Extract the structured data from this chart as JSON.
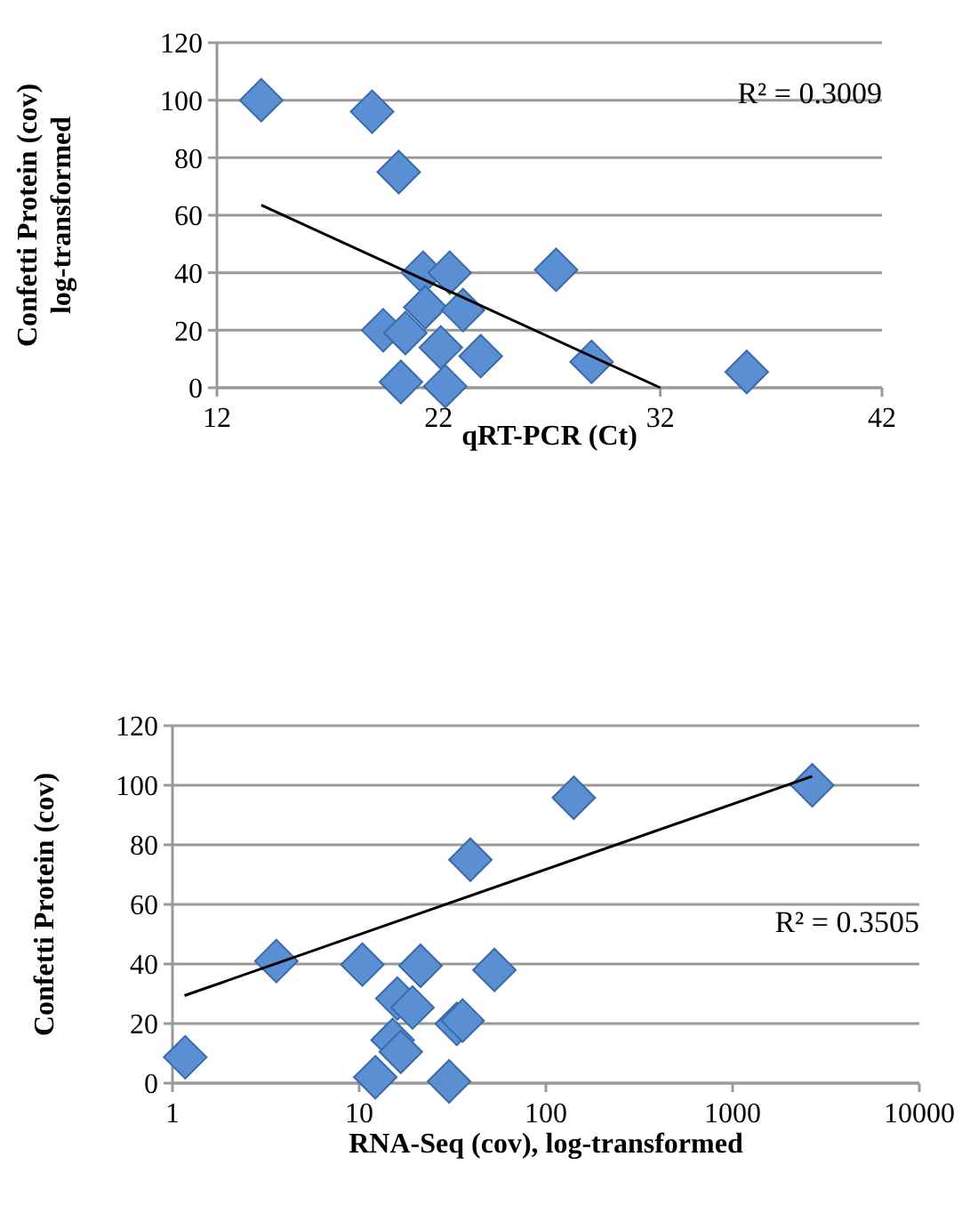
{
  "chart_data": [
    {
      "type": "scatter",
      "xlabel": "qRT-PCR (Ct)",
      "ylabel": "Confetti Protein (cov)\nlog-transformed",
      "xlim": [
        12,
        42
      ],
      "xticks": [
        12,
        22,
        32,
        42
      ],
      "ylim": [
        0,
        120
      ],
      "yticks": [
        0,
        20,
        40,
        60,
        80,
        100,
        120
      ],
      "grid": "y",
      "marker": "diamond",
      "annotations": [
        "R² = 0.3009"
      ],
      "series": [
        {
          "color": "#5b8fd4",
          "x": [
            14,
            19,
            20.2,
            21.3,
            22.5,
            27.3,
            21.4,
            23.1,
            19.5,
            20.5,
            22.1,
            23.9,
            28.9,
            35.9,
            20.3,
            22.3
          ],
          "values": [
            100,
            96,
            75,
            40,
            40,
            41,
            28,
            27,
            20,
            19,
            14,
            11,
            9,
            5.5,
            2,
            0.5
          ]
        },
        {
          "type": "line",
          "color": "#000000",
          "marker": "none",
          "x": [
            14,
            32
          ],
          "values": [
            63.5,
            0
          ]
        }
      ]
    },
    {
      "type": "scatter",
      "xlabel": "RNA-Seq (cov), log-transformed",
      "ylabel": "Confetti Protein (cov)",
      "log": "x",
      "xlim": [
        1,
        10000
      ],
      "xticks": [
        1,
        10,
        100,
        1000,
        10000
      ],
      "ylim": [
        0,
        120
      ],
      "yticks": [
        0,
        20,
        40,
        60,
        80,
        100,
        120
      ],
      "grid": "y",
      "marker": "diamond",
      "annotations": [
        "R² = 0.3505"
      ],
      "series": [
        {
          "color": "#5b8fd4",
          "x": [
            1.17,
            3.6,
            10.4,
            21.3,
            53,
            141,
            39.4,
            2670,
            16,
            19.3,
            33.3,
            35.8,
            15.1,
            16.7,
            12.2,
            30.3
          ],
          "values": [
            8.7,
            41,
            39.8,
            39.4,
            38,
            95.8,
            75,
            100,
            28.4,
            25.4,
            19.9,
            21,
            14.5,
            10.5,
            2,
            0.6
          ]
        },
        {
          "type": "line",
          "color": "#000000",
          "marker": "none",
          "x": [
            1.16,
            2670
          ],
          "values": [
            29.4,
            103
          ]
        }
      ]
    }
  ]
}
